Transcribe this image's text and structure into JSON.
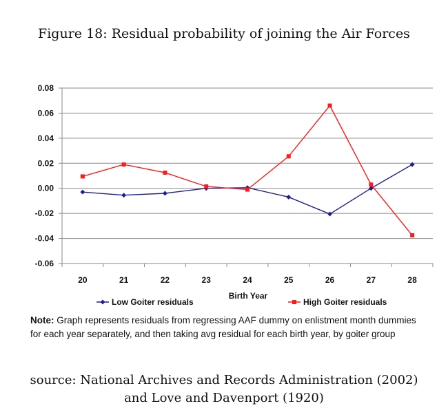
{
  "figure_title": "Figure 18: Residual probability of joining the Air Forces",
  "note": {
    "label": "Note:",
    "text": " Graph represents residuals from regressing AAF dummy on enlistment month dummies for each year separately, and then taking avg residual  for each birth year, by goiter group"
  },
  "source": {
    "line1": "source: National Archives and Records Administration (2002)",
    "line2": "and Love and Davenport (1920)"
  },
  "chart_data": {
    "type": "line",
    "title": "",
    "xlabel": "Birth Year",
    "ylabel": "",
    "x": [
      20,
      21,
      22,
      23,
      24,
      25,
      26,
      27,
      28
    ],
    "ylim": [
      -0.06,
      0.08
    ],
    "yticks": [
      "0.08",
      "0.06",
      "0.04",
      "0.02",
      "0.00",
      "-0.02",
      "-0.04",
      "-0.06"
    ],
    "ytick_values": [
      0.08,
      0.06,
      0.04,
      0.02,
      0.0,
      -0.02,
      -0.04,
      -0.06
    ],
    "grid": true,
    "legend_position": "bottom",
    "series": [
      {
        "name": "Low Goiter residuals",
        "color": "#1f1f8f",
        "marker": "diamond",
        "values": [
          -0.003,
          -0.0055,
          -0.004,
          0.0,
          0.0005,
          -0.007,
          -0.0205,
          0.0,
          0.019
        ]
      },
      {
        "name": "High Goiter residuals",
        "color": "#ff1a1a",
        "marker": "square",
        "values": [
          0.0095,
          0.019,
          0.0125,
          0.0015,
          -0.001,
          0.0255,
          0.066,
          0.003,
          -0.0375
        ]
      }
    ]
  }
}
